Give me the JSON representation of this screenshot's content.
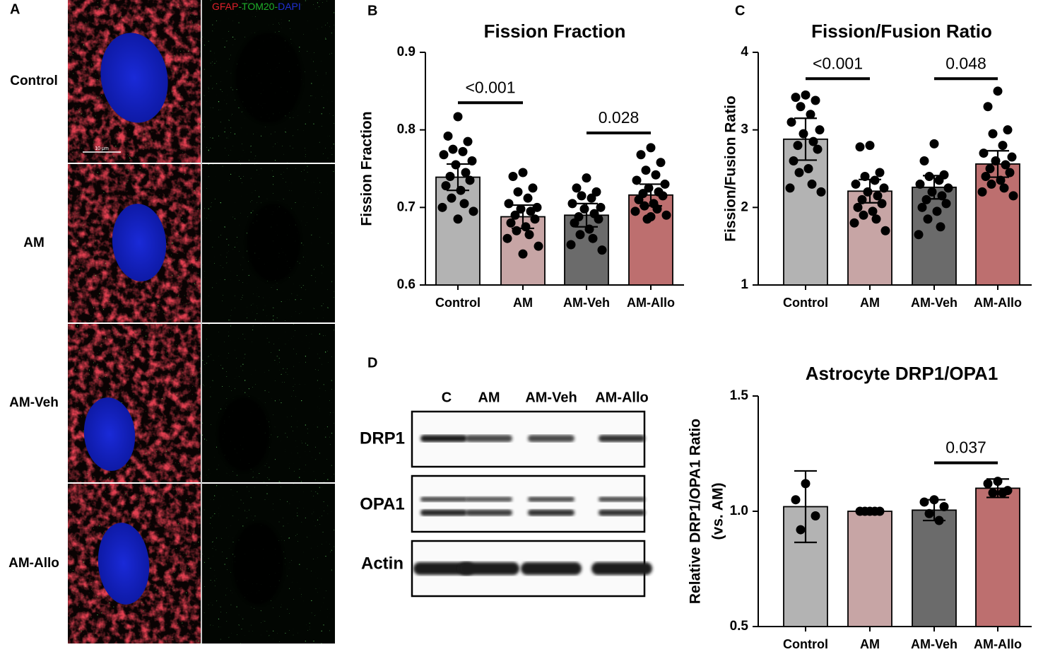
{
  "panel_a": {
    "letter": "A",
    "channels": [
      {
        "label": "GFAP",
        "color": "#e0202a"
      },
      {
        "label": "-TOM20-",
        "color": "#1fae2a"
      },
      {
        "label": "DAPI",
        "color": "#2030d0"
      }
    ],
    "rows": [
      "Control",
      "AM",
      "AM-Veh",
      "AM-Allo"
    ],
    "scale_bar": "10 μm"
  },
  "blot": {
    "letter": "D",
    "lanes": [
      "C",
      "AM",
      "AM-Veh",
      "AM-Allo"
    ],
    "proteins": [
      "DRP1",
      "OPA1",
      "Actin"
    ]
  },
  "chart_data": [
    {
      "type": "bar",
      "panel": "B",
      "title": "Fission Fraction",
      "ylabel": [
        "Fission Fraction"
      ],
      "categories": [
        "Control",
        "AM",
        "AM-Veh",
        "AM-Allo"
      ],
      "colors": [
        "#b3b3b3",
        "#c7a5a5",
        "#6b6b6b",
        "#bd6f6f"
      ],
      "values": [
        0.739,
        0.688,
        0.69,
        0.716
      ],
      "errors": [
        0.017,
        0.015,
        0.015,
        0.014
      ],
      "points": [
        [
          0.817,
          0.792,
          0.785,
          0.775,
          0.772,
          0.768,
          0.76,
          0.755,
          0.745,
          0.74,
          0.735,
          0.728,
          0.722,
          0.712,
          0.705,
          0.7,
          0.695,
          0.685
        ],
        [
          0.745,
          0.74,
          0.725,
          0.72,
          0.712,
          0.705,
          0.7,
          0.698,
          0.695,
          0.69,
          0.685,
          0.68,
          0.675,
          0.67,
          0.665,
          0.66,
          0.65,
          0.64
        ],
        [
          0.738,
          0.725,
          0.72,
          0.715,
          0.712,
          0.705,
          0.7,
          0.698,
          0.692,
          0.688,
          0.685,
          0.68,
          0.672,
          0.665,
          0.66,
          0.652,
          0.645
        ],
        [
          0.777,
          0.768,
          0.758,
          0.748,
          0.742,
          0.735,
          0.73,
          0.725,
          0.72,
          0.718,
          0.715,
          0.71,
          0.705,
          0.702,
          0.698,
          0.695,
          0.69,
          0.688,
          0.685
        ]
      ],
      "ylim": [
        0.6,
        0.9
      ],
      "yticks": [
        0.6,
        0.7,
        0.8,
        0.9
      ],
      "annotations": [
        {
          "label": "<0.001",
          "from": "Control",
          "to": "AM",
          "y": 0.835
        },
        {
          "label": "0.028",
          "from": "AM-Veh",
          "to": "AM-Allo",
          "y": 0.796
        }
      ]
    },
    {
      "type": "bar",
      "panel": "C",
      "title": "Fission/Fusion Ratio",
      "ylabel": [
        "Fission/Fusion Ratio"
      ],
      "categories": [
        "Control",
        "AM",
        "AM-Veh",
        "AM-Allo"
      ],
      "colors": [
        "#b3b3b3",
        "#c7a5a5",
        "#6b6b6b",
        "#bd6f6f"
      ],
      "values": [
        2.88,
        2.21,
        2.26,
        2.56
      ],
      "errors": [
        0.27,
        0.15,
        0.15,
        0.17
      ],
      "points": [
        [
          3.45,
          3.42,
          3.38,
          3.3,
          3.2,
          3.1,
          3.0,
          2.95,
          2.85,
          2.8,
          2.75,
          2.6,
          2.5,
          2.45,
          2.3,
          2.25,
          2.2
        ],
        [
          2.8,
          2.78,
          2.45,
          2.4,
          2.35,
          2.3,
          2.25,
          2.2,
          2.15,
          2.1,
          2.05,
          2.0,
          1.95,
          1.9,
          1.85,
          1.8,
          1.7
        ],
        [
          2.82,
          2.6,
          2.42,
          2.4,
          2.35,
          2.3,
          2.25,
          2.2,
          2.15,
          2.1,
          2.05,
          2.0,
          1.95,
          1.85,
          1.75,
          1.65
        ],
        [
          3.5,
          3.3,
          3.0,
          2.95,
          2.8,
          2.7,
          2.65,
          2.6,
          2.55,
          2.5,
          2.45,
          2.4,
          2.35,
          2.3,
          2.25,
          2.2,
          2.15
        ]
      ],
      "ylim": [
        1,
        4
      ],
      "yticks": [
        1,
        2,
        3,
        4
      ],
      "annotations": [
        {
          "label": "<0.001",
          "from": "Control",
          "to": "AM",
          "y": 3.66
        },
        {
          "label": "0.048",
          "from": "AM-Veh",
          "to": "AM-Allo",
          "y": 3.66
        }
      ]
    },
    {
      "type": "bar",
      "title": "Astrocyte DRP1/OPA1",
      "ylabel": [
        "Relative DRP1/OPA1 Ratio",
        "(vs. AM)"
      ],
      "categories": [
        "Control",
        "AM",
        "AM-Veh",
        "AM-Allo"
      ],
      "colors": [
        "#b3b3b3",
        "#c7a5a5",
        "#6b6b6b",
        "#bd6f6f"
      ],
      "values": [
        1.02,
        1.0,
        1.005,
        1.1
      ],
      "errors": [
        0.155,
        0,
        0.045,
        0.04
      ],
      "points": [
        [
          1.12,
          1.05,
          0.98,
          0.92
        ],
        [
          1.0,
          1.0,
          1.0,
          1.0,
          1.0
        ],
        [
          1.05,
          1.04,
          1.02,
          0.99,
          0.96
        ],
        [
          1.13,
          1.12,
          1.09,
          1.08,
          1.08
        ]
      ],
      "ylim": [
        0.5,
        1.5
      ],
      "yticks": [
        0.5,
        {
          "value": 1,
          "label": "1.0"
        },
        1.5
      ],
      "annotations": [
        {
          "label": "0.037",
          "from": "AM-Veh",
          "to": "AM-Allo",
          "y": 1.21
        }
      ]
    }
  ]
}
